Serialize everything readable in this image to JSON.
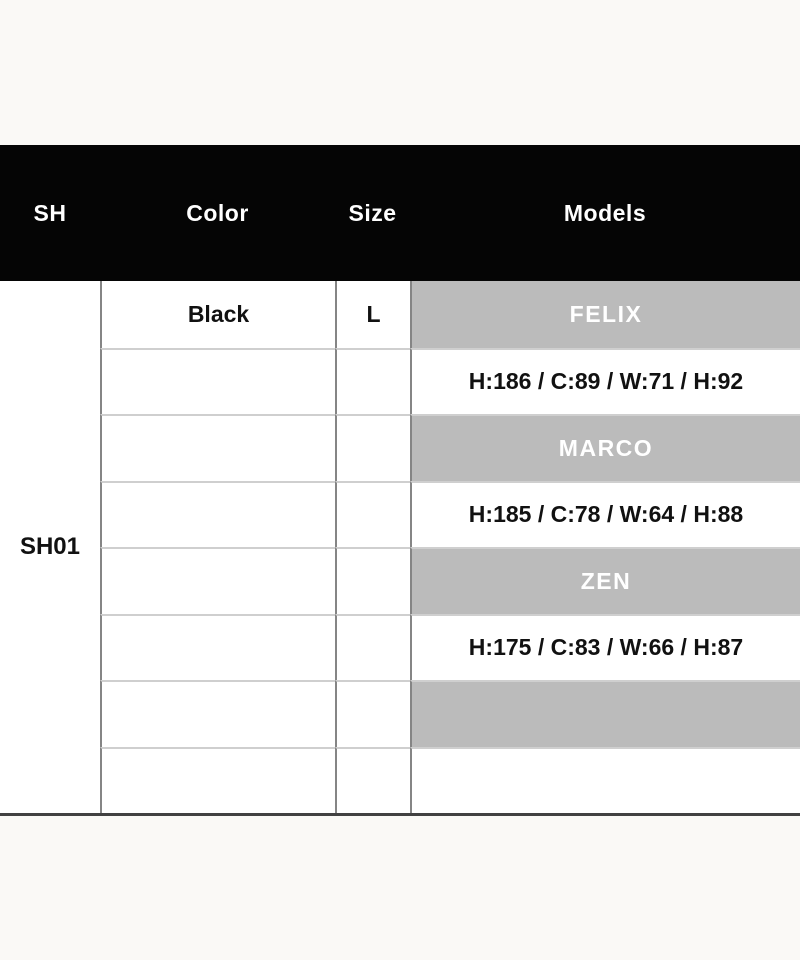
{
  "page": {
    "background": "#faf9f6"
  },
  "header": {
    "bg": "#050505",
    "text_color": "#ffffff",
    "columns": [
      {
        "label": "SH"
      },
      {
        "label": "Color"
      },
      {
        "label": "Size"
      },
      {
        "label": "Models"
      }
    ]
  },
  "table": {
    "sh_code": "SH01",
    "color": "Black",
    "size": "L",
    "band_color": "#bbbbbb",
    "band_text_color": "#ffffff",
    "models": [
      {
        "name": "FELIX",
        "measurements": "H:186 / C:89 / W:71 / H:92"
      },
      {
        "name": "MARCO",
        "measurements": "H:185 / C:78 / W:64 / H:88"
      },
      {
        "name": "ZEN",
        "measurements": "H:175 / C:83 / W:66 / H:87"
      }
    ]
  }
}
